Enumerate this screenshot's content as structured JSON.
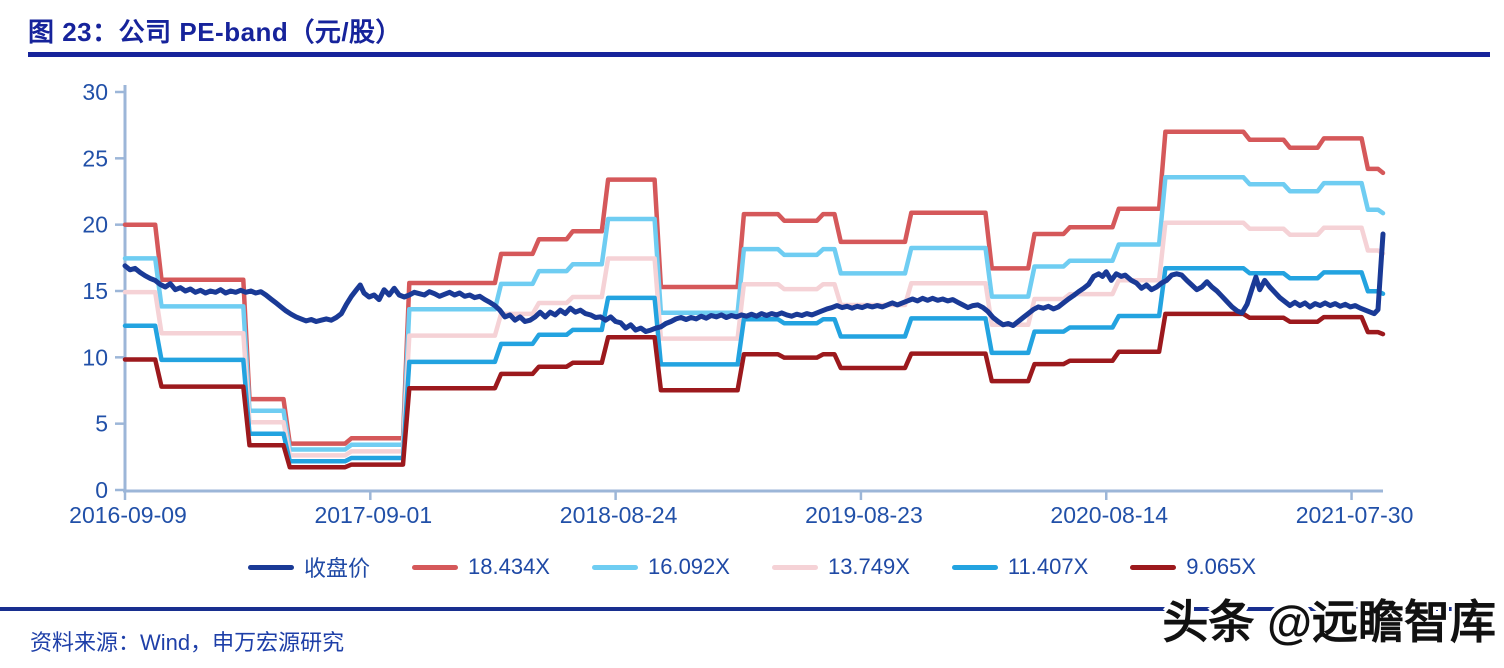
{
  "title": {
    "text": "图 23：公司 PE-band（元/股）"
  },
  "source": {
    "text": "资料来源：Wind，申万宏源研究"
  },
  "watermark": {
    "text": "头条 @远瞻智库"
  },
  "colors": {
    "title_navy": "#16239b",
    "axis_line": "#9cb6d8",
    "axis_text": "#2150a8",
    "legend_text": "#1f49a5",
    "close_price": "#1a3a96",
    "band_18434": "#d5585a",
    "band_16092": "#6fcdf2",
    "band_13749": "#f5d2d6",
    "band_11407": "#23a3e0",
    "band_9065": "#9c191d"
  },
  "chart_data": {
    "type": "line",
    "title": "图 23：公司 PE-band（元/股）",
    "xlabel": "",
    "ylabel": "",
    "ylim": [
      0,
      30
    ],
    "yticks": [
      0,
      5,
      10,
      15,
      20,
      25,
      30
    ],
    "grid": false,
    "legend_position": "bottom",
    "xticks": [
      {
        "label": "2016-09-09",
        "t": 0.0
      },
      {
        "label": "2017-09-01",
        "t": 0.195
      },
      {
        "label": "2018-08-24",
        "t": 0.39
      },
      {
        "label": "2019-08-23",
        "t": 0.585
      },
      {
        "label": "2020-08-14",
        "t": 0.78
      },
      {
        "label": "2021-07-30",
        "t": 0.975
      }
    ],
    "series_legend": [
      {
        "name": "收盘价",
        "color": "#1a3a96"
      },
      {
        "name": "18.434X",
        "color": "#d5585a"
      },
      {
        "name": "16.092X",
        "color": "#6fcdf2"
      },
      {
        "name": "13.749X",
        "color": "#f5d2d6"
      },
      {
        "name": "11.407X",
        "color": "#23a3e0"
      },
      {
        "name": "9.065X",
        "color": "#9c191d"
      }
    ],
    "pe_bands": {
      "note": "steps give the 18.434X (top) band value from time-fraction t onward; other bands scale by multiplier/18.434",
      "multipliers": [
        {
          "name": "18.434X",
          "m": 18.434,
          "color": "#d5585a"
        },
        {
          "name": "16.092X",
          "m": 16.092,
          "color": "#6fcdf2"
        },
        {
          "name": "13.749X",
          "m": 13.749,
          "color": "#f5d2d6"
        },
        {
          "name": "11.407X",
          "m": 11.407,
          "color": "#23a3e0"
        },
        {
          "name": "9.065X",
          "m": 9.065,
          "color": "#9c191d"
        }
      ],
      "steps": [
        {
          "t": 0.0,
          "v": 20.0
        },
        {
          "t": 0.024,
          "v": 15.85
        },
        {
          "t": 0.094,
          "v": 6.85
        },
        {
          "t": 0.126,
          "v": 3.5
        },
        {
          "t": 0.175,
          "v": 3.9
        },
        {
          "t": 0.221,
          "v": 15.6
        },
        {
          "t": 0.294,
          "v": 17.8
        },
        {
          "t": 0.324,
          "v": 18.9
        },
        {
          "t": 0.351,
          "v": 19.5
        },
        {
          "t": 0.379,
          "v": 23.4
        },
        {
          "t": 0.421,
          "v": 15.3
        },
        {
          "t": 0.487,
          "v": 20.8
        },
        {
          "t": 0.519,
          "v": 20.3
        },
        {
          "t": 0.55,
          "v": 20.8
        },
        {
          "t": 0.564,
          "v": 18.7
        },
        {
          "t": 0.62,
          "v": 20.9
        },
        {
          "t": 0.684,
          "v": 16.7
        },
        {
          "t": 0.718,
          "v": 19.3
        },
        {
          "t": 0.746,
          "v": 19.8
        },
        {
          "t": 0.785,
          "v": 21.2
        },
        {
          "t": 0.822,
          "v": 27.0
        },
        {
          "t": 0.889,
          "v": 26.4
        },
        {
          "t": 0.921,
          "v": 25.8
        },
        {
          "t": 0.948,
          "v": 26.5
        },
        {
          "t": 0.983,
          "v": 24.2
        },
        {
          "t": 0.996,
          "v": 23.9
        }
      ]
    },
    "close_price": {
      "name": "收盘价",
      "points": [
        [
          0.0,
          16.9
        ],
        [
          0.004,
          16.6
        ],
        [
          0.008,
          16.7
        ],
        [
          0.012,
          16.4
        ],
        [
          0.016,
          16.15
        ],
        [
          0.02,
          15.95
        ],
        [
          0.024,
          15.8
        ],
        [
          0.028,
          15.5
        ],
        [
          0.032,
          15.3
        ],
        [
          0.036,
          15.55
        ],
        [
          0.04,
          15.1
        ],
        [
          0.044,
          15.25
        ],
        [
          0.048,
          15.0
        ],
        [
          0.052,
          15.15
        ],
        [
          0.056,
          14.9
        ],
        [
          0.06,
          15.05
        ],
        [
          0.064,
          14.85
        ],
        [
          0.068,
          15.0
        ],
        [
          0.072,
          14.9
        ],
        [
          0.076,
          15.1
        ],
        [
          0.08,
          14.85
        ],
        [
          0.084,
          15.0
        ],
        [
          0.088,
          14.9
        ],
        [
          0.092,
          15.05
        ],
        [
          0.096,
          14.9
        ],
        [
          0.1,
          15.0
        ],
        [
          0.104,
          14.85
        ],
        [
          0.108,
          14.95
        ],
        [
          0.112,
          14.7
        ],
        [
          0.116,
          14.4
        ],
        [
          0.12,
          14.1
        ],
        [
          0.124,
          13.8
        ],
        [
          0.128,
          13.5
        ],
        [
          0.132,
          13.25
        ],
        [
          0.136,
          13.05
        ],
        [
          0.14,
          12.9
        ],
        [
          0.144,
          12.75
        ],
        [
          0.148,
          12.85
        ],
        [
          0.152,
          12.7
        ],
        [
          0.156,
          12.8
        ],
        [
          0.16,
          12.9
        ],
        [
          0.164,
          12.8
        ],
        [
          0.168,
          13.0
        ],
        [
          0.172,
          13.3
        ],
        [
          0.176,
          14.0
        ],
        [
          0.18,
          14.6
        ],
        [
          0.184,
          15.1
        ],
        [
          0.187,
          15.45
        ],
        [
          0.19,
          14.85
        ],
        [
          0.194,
          14.55
        ],
        [
          0.198,
          14.7
        ],
        [
          0.202,
          14.35
        ],
        [
          0.206,
          15.1
        ],
        [
          0.21,
          14.7
        ],
        [
          0.214,
          15.2
        ],
        [
          0.218,
          14.7
        ],
        [
          0.222,
          14.55
        ],
        [
          0.226,
          14.7
        ],
        [
          0.23,
          14.9
        ],
        [
          0.234,
          14.8
        ],
        [
          0.238,
          14.7
        ],
        [
          0.242,
          14.95
        ],
        [
          0.246,
          14.8
        ],
        [
          0.25,
          14.6
        ],
        [
          0.254,
          14.75
        ],
        [
          0.258,
          14.9
        ],
        [
          0.262,
          14.7
        ],
        [
          0.266,
          14.85
        ],
        [
          0.27,
          14.6
        ],
        [
          0.274,
          14.7
        ],
        [
          0.278,
          14.5
        ],
        [
          0.282,
          14.6
        ],
        [
          0.286,
          14.35
        ],
        [
          0.29,
          14.15
        ],
        [
          0.294,
          13.9
        ],
        [
          0.298,
          13.55
        ],
        [
          0.302,
          13.05
        ],
        [
          0.306,
          13.2
        ],
        [
          0.31,
          12.8
        ],
        [
          0.314,
          13.05
        ],
        [
          0.318,
          12.7
        ],
        [
          0.322,
          12.8
        ],
        [
          0.326,
          13.05
        ],
        [
          0.33,
          13.4
        ],
        [
          0.334,
          13.05
        ],
        [
          0.338,
          13.4
        ],
        [
          0.342,
          13.2
        ],
        [
          0.346,
          13.55
        ],
        [
          0.35,
          13.3
        ],
        [
          0.354,
          13.7
        ],
        [
          0.358,
          13.4
        ],
        [
          0.362,
          13.55
        ],
        [
          0.366,
          13.3
        ],
        [
          0.37,
          13.2
        ],
        [
          0.374,
          13.0
        ],
        [
          0.378,
          13.05
        ],
        [
          0.382,
          12.8
        ],
        [
          0.386,
          13.05
        ],
        [
          0.39,
          12.7
        ],
        [
          0.394,
          12.6
        ],
        [
          0.398,
          12.2
        ],
        [
          0.402,
          12.45
        ],
        [
          0.406,
          12.05
        ],
        [
          0.41,
          12.2
        ],
        [
          0.414,
          11.95
        ],
        [
          0.418,
          12.05
        ],
        [
          0.422,
          12.2
        ],
        [
          0.426,
          12.3
        ],
        [
          0.43,
          12.55
        ],
        [
          0.434,
          12.7
        ],
        [
          0.438,
          12.9
        ],
        [
          0.442,
          13.0
        ],
        [
          0.446,
          12.85
        ],
        [
          0.45,
          13.0
        ],
        [
          0.454,
          12.9
        ],
        [
          0.458,
          13.1
        ],
        [
          0.462,
          12.95
        ],
        [
          0.466,
          13.15
        ],
        [
          0.47,
          13.05
        ],
        [
          0.474,
          13.2
        ],
        [
          0.478,
          13.0
        ],
        [
          0.482,
          13.15
        ],
        [
          0.486,
          13.05
        ],
        [
          0.49,
          13.2
        ],
        [
          0.494,
          13.1
        ],
        [
          0.498,
          13.25
        ],
        [
          0.502,
          13.1
        ],
        [
          0.506,
          13.3
        ],
        [
          0.51,
          13.15
        ],
        [
          0.514,
          13.3
        ],
        [
          0.518,
          13.2
        ],
        [
          0.522,
          13.35
        ],
        [
          0.526,
          13.2
        ],
        [
          0.53,
          13.1
        ],
        [
          0.534,
          13.25
        ],
        [
          0.538,
          13.15
        ],
        [
          0.542,
          13.3
        ],
        [
          0.546,
          13.2
        ],
        [
          0.55,
          13.35
        ],
        [
          0.554,
          13.5
        ],
        [
          0.558,
          13.65
        ],
        [
          0.562,
          13.75
        ],
        [
          0.566,
          13.9
        ],
        [
          0.57,
          13.75
        ],
        [
          0.574,
          13.85
        ],
        [
          0.578,
          13.7
        ],
        [
          0.582,
          13.85
        ],
        [
          0.586,
          13.75
        ],
        [
          0.59,
          13.9
        ],
        [
          0.594,
          13.8
        ],
        [
          0.598,
          13.9
        ],
        [
          0.602,
          13.8
        ],
        [
          0.606,
          13.95
        ],
        [
          0.61,
          14.1
        ],
        [
          0.614,
          13.95
        ],
        [
          0.618,
          14.1
        ],
        [
          0.622,
          14.25
        ],
        [
          0.626,
          14.4
        ],
        [
          0.63,
          14.25
        ],
        [
          0.634,
          14.45
        ],
        [
          0.638,
          14.3
        ],
        [
          0.642,
          14.45
        ],
        [
          0.646,
          14.3
        ],
        [
          0.65,
          14.4
        ],
        [
          0.654,
          14.25
        ],
        [
          0.658,
          14.35
        ],
        [
          0.662,
          14.15
        ],
        [
          0.666,
          13.95
        ],
        [
          0.67,
          13.75
        ],
        [
          0.674,
          13.9
        ],
        [
          0.678,
          13.95
        ],
        [
          0.682,
          13.75
        ],
        [
          0.686,
          13.45
        ],
        [
          0.69,
          13.0
        ],
        [
          0.694,
          12.7
        ],
        [
          0.698,
          12.45
        ],
        [
          0.702,
          12.55
        ],
        [
          0.706,
          12.4
        ],
        [
          0.71,
          12.7
        ],
        [
          0.714,
          13.0
        ],
        [
          0.718,
          13.3
        ],
        [
          0.722,
          13.6
        ],
        [
          0.726,
          13.8
        ],
        [
          0.73,
          13.7
        ],
        [
          0.734,
          13.85
        ],
        [
          0.738,
          13.65
        ],
        [
          0.742,
          13.8
        ],
        [
          0.746,
          14.1
        ],
        [
          0.75,
          14.4
        ],
        [
          0.754,
          14.65
        ],
        [
          0.758,
          14.95
        ],
        [
          0.762,
          15.2
        ],
        [
          0.766,
          15.5
        ],
        [
          0.77,
          16.1
        ],
        [
          0.774,
          16.3
        ],
        [
          0.777,
          16.1
        ],
        [
          0.78,
          16.45
        ],
        [
          0.784,
          15.8
        ],
        [
          0.788,
          16.3
        ],
        [
          0.792,
          16.1
        ],
        [
          0.795,
          16.2
        ],
        [
          0.8,
          15.8
        ],
        [
          0.804,
          15.6
        ],
        [
          0.808,
          15.2
        ],
        [
          0.812,
          15.45
        ],
        [
          0.816,
          15.1
        ],
        [
          0.82,
          15.3
        ],
        [
          0.824,
          15.6
        ],
        [
          0.828,
          15.8
        ],
        [
          0.832,
          16.2
        ],
        [
          0.836,
          16.3
        ],
        [
          0.84,
          16.2
        ],
        [
          0.844,
          15.8
        ],
        [
          0.848,
          15.45
        ],
        [
          0.852,
          15.1
        ],
        [
          0.856,
          15.3
        ],
        [
          0.86,
          15.7
        ],
        [
          0.864,
          15.3
        ],
        [
          0.868,
          15.0
        ],
        [
          0.872,
          14.6
        ],
        [
          0.876,
          14.2
        ],
        [
          0.88,
          13.8
        ],
        [
          0.884,
          13.5
        ],
        [
          0.888,
          13.35
        ],
        [
          0.892,
          14.0
        ],
        [
          0.896,
          15.2
        ],
        [
          0.899,
          16.05
        ],
        [
          0.902,
          15.1
        ],
        [
          0.906,
          15.8
        ],
        [
          0.91,
          15.3
        ],
        [
          0.914,
          14.9
        ],
        [
          0.918,
          14.5
        ],
        [
          0.922,
          14.2
        ],
        [
          0.926,
          13.9
        ],
        [
          0.93,
          14.15
        ],
        [
          0.934,
          13.9
        ],
        [
          0.938,
          14.1
        ],
        [
          0.942,
          13.8
        ],
        [
          0.946,
          14.05
        ],
        [
          0.95,
          13.9
        ],
        [
          0.954,
          14.1
        ],
        [
          0.958,
          13.9
        ],
        [
          0.962,
          14.05
        ],
        [
          0.966,
          13.85
        ],
        [
          0.97,
          14.0
        ],
        [
          0.974,
          13.8
        ],
        [
          0.978,
          13.9
        ],
        [
          0.982,
          13.7
        ],
        [
          0.986,
          13.55
        ],
        [
          0.99,
          13.4
        ],
        [
          0.993,
          13.3
        ],
        [
          0.996,
          13.6
        ],
        [
          0.998,
          16.5
        ],
        [
          1.0,
          19.3
        ]
      ]
    }
  }
}
